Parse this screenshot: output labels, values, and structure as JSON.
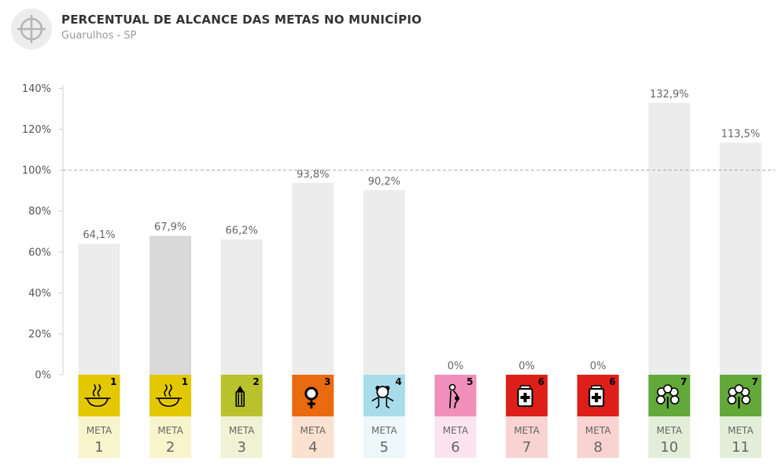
{
  "header": {
    "title": "PERCENTUAL DE ALCANCE DAS METAS NO MUNICÍPIO",
    "subtitle": "Guarulhos - SP"
  },
  "chart_data": {
    "type": "bar",
    "title": "PERCENTUAL DE ALCANCE DAS METAS NO MUNICÍPIO",
    "subtitle": "Guarulhos - SP",
    "xlabel": "",
    "ylabel": "",
    "ylim": [
      0,
      140
    ],
    "yticks": [
      0,
      20,
      40,
      60,
      80,
      100,
      120,
      140
    ],
    "ytick_labels": [
      "0%",
      "20%",
      "40%",
      "60%",
      "80%",
      "100%",
      "120%",
      "140%"
    ],
    "reference_line": 100,
    "grid": false,
    "highlighted_index": 1,
    "categories": [
      "1",
      "2",
      "3",
      "4",
      "5",
      "6",
      "7",
      "8",
      "10",
      "11"
    ],
    "category_prefix": "META",
    "values": [
      64.1,
      67.9,
      66.2,
      93.8,
      90.2,
      0,
      0,
      0,
      132.9,
      113.5
    ],
    "value_labels": [
      "64,1%",
      "67,9%",
      "66,2%",
      "93,8%",
      "90,2%",
      "0%",
      "0%",
      "0%",
      "132,9%",
      "113,5%"
    ],
    "badges": [
      {
        "number": "1",
        "icon": "bowl-icon",
        "color": "#e3c800",
        "light": "#f8f4cc"
      },
      {
        "number": "1",
        "icon": "bowl-icon",
        "color": "#e3c800",
        "light": "#f8f4cc"
      },
      {
        "number": "2",
        "icon": "pencil-icon",
        "color": "#b8c22c",
        "light": "#f1f2d4"
      },
      {
        "number": "3",
        "icon": "female-symbol-icon",
        "color": "#ea6a10",
        "light": "#fbe2d0"
      },
      {
        "number": "4",
        "icon": "teddy-bear-icon",
        "color": "#a9dcea",
        "light": "#eef8fb"
      },
      {
        "number": "5",
        "icon": "pregnant-woman-icon",
        "color": "#ef8fba",
        "light": "#fce4ef"
      },
      {
        "number": "6",
        "icon": "medicine-bottle-icon",
        "color": "#de1f19",
        "light": "#f8d3d1"
      },
      {
        "number": "6",
        "icon": "medicine-bottle-icon",
        "color": "#de1f19",
        "light": "#f8d3d1"
      },
      {
        "number": "7",
        "icon": "plant-icon",
        "color": "#63a83a",
        "light": "#e3eed9"
      },
      {
        "number": "7",
        "icon": "plant-icon",
        "color": "#63a83a",
        "light": "#e3eed9"
      }
    ],
    "bar_color": "#ececec",
    "highlight_color": "#d9d9d9"
  }
}
